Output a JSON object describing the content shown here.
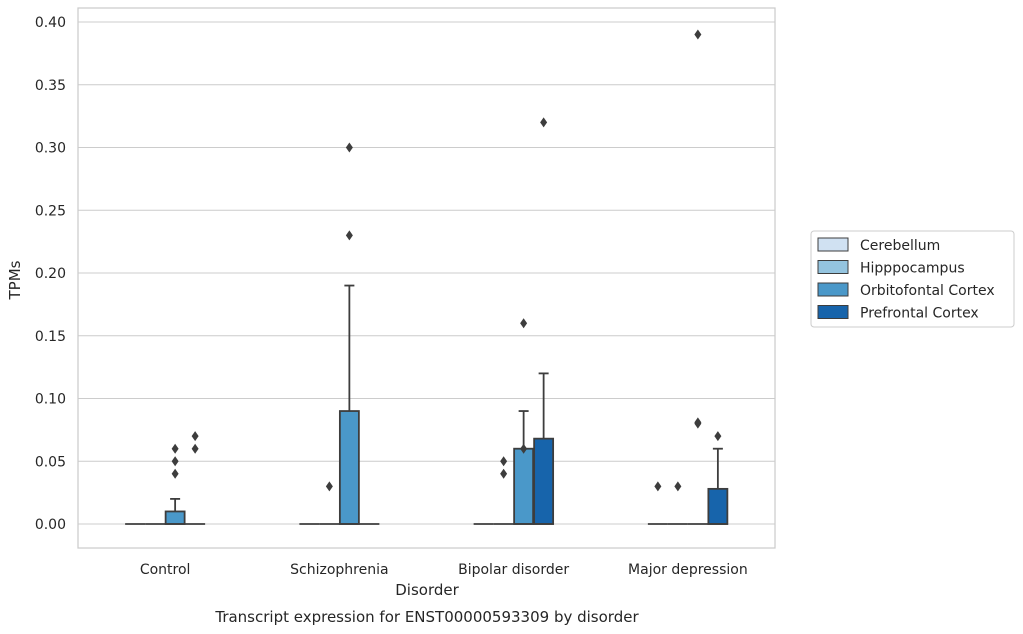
{
  "chart_data": {
    "type": "box",
    "title": "",
    "caption": "Transcript expression for ENST00000593309 by disorder",
    "xlabel": "Disorder",
    "ylabel": "TPMs",
    "ylim": [
      -0.019,
      0.41
    ],
    "yticks": [
      "0.00",
      "0.05",
      "0.10",
      "0.15",
      "0.20",
      "0.25",
      "0.30",
      "0.35",
      "0.40"
    ],
    "ytick_values": [
      0,
      0.05,
      0.1,
      0.15,
      0.2,
      0.25,
      0.3,
      0.35,
      0.4
    ],
    "grid": "horizontal",
    "legend_position": "right",
    "categories": [
      "Control",
      "Schizophrenia",
      "Bipolar disorder",
      "Major depression"
    ],
    "series": [
      {
        "name": "Cerebellum",
        "color": "#d0e1f2",
        "boxes": [
          {
            "q1": 0,
            "median": 0,
            "q3": 0,
            "whisker_low": 0,
            "whisker_high": 0,
            "outliers": []
          },
          {
            "q1": 0,
            "median": 0,
            "q3": 0,
            "whisker_low": 0,
            "whisker_high": 0,
            "outliers": []
          },
          {
            "q1": 0,
            "median": 0,
            "q3": 0,
            "whisker_low": 0,
            "whisker_high": 0,
            "outliers": []
          },
          {
            "q1": 0,
            "median": 0,
            "q3": 0,
            "whisker_low": 0,
            "whisker_high": 0,
            "outliers": [
              0.03
            ]
          }
        ]
      },
      {
        "name": "Hipppocampus",
        "color": "#94c4df",
        "boxes": [
          {
            "q1": 0,
            "median": 0,
            "q3": 0,
            "whisker_low": 0,
            "whisker_high": 0,
            "outliers": []
          },
          {
            "q1": 0,
            "median": 0,
            "q3": 0,
            "whisker_low": 0,
            "whisker_high": 0,
            "outliers": [
              0.03
            ]
          },
          {
            "q1": 0,
            "median": 0,
            "q3": 0,
            "whisker_low": 0,
            "whisker_high": 0,
            "outliers": [
              0.04,
              0.05
            ]
          },
          {
            "q1": 0,
            "median": 0,
            "q3": 0,
            "whisker_low": 0,
            "whisker_high": 0,
            "outliers": [
              0.03
            ]
          }
        ]
      },
      {
        "name": "Orbitofontal Cortex",
        "color": "#4a98c9",
        "boxes": [
          {
            "q1": 0,
            "median": 0,
            "q3": 0.01,
            "whisker_low": 0,
            "whisker_high": 0.02,
            "outliers": [
              0.04,
              0.05,
              0.06
            ]
          },
          {
            "q1": 0,
            "median": 0,
            "q3": 0.09,
            "whisker_low": 0,
            "whisker_high": 0.19,
            "outliers": [
              0.23,
              0.3
            ]
          },
          {
            "q1": 0,
            "median": 0,
            "q3": 0.06,
            "whisker_low": 0,
            "whisker_high": 0.09,
            "outliers": [
              0.06,
              0.16
            ]
          },
          {
            "q1": 0,
            "median": 0,
            "q3": 0,
            "whisker_low": 0,
            "whisker_high": 0,
            "outliers": [
              0.08,
              0.081,
              0.39
            ]
          }
        ]
      },
      {
        "name": "Prefrontal Cortex",
        "color": "#1764ab",
        "boxes": [
          {
            "q1": 0,
            "median": 0,
            "q3": 0,
            "whisker_low": 0,
            "whisker_high": 0,
            "outliers": [
              0.06,
              0.07
            ]
          },
          {
            "q1": 0,
            "median": 0,
            "q3": 0,
            "whisker_low": 0,
            "whisker_high": 0,
            "outliers": []
          },
          {
            "q1": 0,
            "median": 0,
            "q3": 0.068,
            "whisker_low": 0,
            "whisker_high": 0.12,
            "outliers": [
              0.32
            ]
          },
          {
            "q1": 0,
            "median": 0,
            "q3": 0.028,
            "whisker_low": 0,
            "whisker_high": 0.06,
            "outliers": [
              0.07
            ]
          }
        ]
      }
    ]
  }
}
